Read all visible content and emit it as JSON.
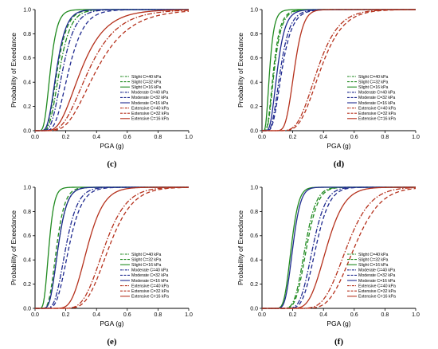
{
  "colors": {
    "Slight": "#1f8a1f",
    "Moderate": "#1f2a8f",
    "Extensive": "#b5311c"
  },
  "chart_data": [
    {
      "type": "line",
      "panel_label": "(c)",
      "xlabel": "PGA (g)",
      "ylabel": "Probability of Exeedance",
      "xlim": [
        0,
        1.0
      ],
      "ylim": [
        0,
        1.0
      ],
      "xticks": [
        "0.0",
        "0.2",
        "0.4",
        "0.6",
        "0.8",
        "1.0"
      ],
      "yticks": [
        "0.0",
        "0.2",
        "0.4",
        "0.6",
        "0.8",
        "1.0"
      ],
      "legend_position": "lower-right",
      "series": [
        {
          "name": "Slight C=40 kPa",
          "group": "Slight",
          "style": "dashdot",
          "median": 0.16,
          "beta": 0.35
        },
        {
          "name": "Slight C=32 kPa",
          "group": "Slight",
          "style": "dash",
          "median": 0.145,
          "beta": 0.35
        },
        {
          "name": "Slight C=16 kPa",
          "group": "Slight",
          "style": "solid",
          "median": 0.1,
          "beta": 0.35
        },
        {
          "name": "Moderate C=40 kPa",
          "group": "Moderate",
          "style": "dashdot",
          "median": 0.18,
          "beta": 0.35
        },
        {
          "name": "Moderate C=32 kPa",
          "group": "Moderate",
          "style": "dash",
          "median": 0.22,
          "beta": 0.35
        },
        {
          "name": "Moderate C=16 kPa",
          "group": "Moderate",
          "style": "solid",
          "median": 0.14,
          "beta": 0.35
        },
        {
          "name": "Extensive C=40 kPa",
          "group": "Extensive",
          "style": "dashdot",
          "median": 0.35,
          "beta": 0.42
        },
        {
          "name": "Extensive C=32 kPa",
          "group": "Extensive",
          "style": "dash",
          "median": 0.4,
          "beta": 0.42
        },
        {
          "name": "Extensive C=16 kPa",
          "group": "Extensive",
          "style": "solid",
          "median": 0.3,
          "beta": 0.42
        }
      ]
    },
    {
      "type": "line",
      "panel_label": "(d)",
      "xlabel": "PGA (g)",
      "ylabel": "Probability of Exeedance",
      "xlim": [
        0,
        1.0
      ],
      "ylim": [
        0,
        1.0
      ],
      "xticks": [
        "0.0",
        "0.2",
        "0.4",
        "0.6",
        "0.8",
        "1.0"
      ],
      "yticks": [
        "0.0",
        "0.2",
        "0.4",
        "0.6",
        "0.8",
        "1.0"
      ],
      "legend_position": "lower-right",
      "series": [
        {
          "name": "Slight C=40 kPa",
          "group": "Slight",
          "style": "dashdot",
          "median": 0.08,
          "beta": 0.45
        },
        {
          "name": "Slight C=32 kPa",
          "group": "Slight",
          "style": "dash",
          "median": 0.075,
          "beta": 0.45
        },
        {
          "name": "Slight C=16 kPa",
          "group": "Slight",
          "style": "solid",
          "median": 0.05,
          "beta": 0.45
        },
        {
          "name": "Moderate C=40 kPa",
          "group": "Moderate",
          "style": "dashdot",
          "median": 0.12,
          "beta": 0.4
        },
        {
          "name": "Moderate C=32 kPa",
          "group": "Moderate",
          "style": "dash",
          "median": 0.13,
          "beta": 0.4
        },
        {
          "name": "Moderate C=16 kPa",
          "group": "Moderate",
          "style": "solid",
          "median": 0.1,
          "beta": 0.4
        },
        {
          "name": "Extensive C=40 kPa",
          "group": "Extensive",
          "style": "dashdot",
          "median": 0.36,
          "beta": 0.3
        },
        {
          "name": "Extensive C=32 kPa",
          "group": "Extensive",
          "style": "dash",
          "median": 0.38,
          "beta": 0.3
        },
        {
          "name": "Extensive C=16 kPa",
          "group": "Extensive",
          "style": "solid",
          "median": 0.21,
          "beta": 0.22
        }
      ]
    },
    {
      "type": "line",
      "panel_label": "(e)",
      "xlabel": "PGA (g)",
      "ylabel": "Probability of Exeedance",
      "xlim": [
        0,
        1.0
      ],
      "ylim": [
        0,
        1.0
      ],
      "xticks": [
        "0.0",
        "0.2",
        "0.4",
        "0.6",
        "0.8",
        "1.0"
      ],
      "yticks": [
        "0.0",
        "0.2",
        "0.4",
        "0.6",
        "0.8",
        "1.0"
      ],
      "legend_position": "lower-right",
      "series": [
        {
          "name": "Slight C=40 kPa",
          "group": "Slight",
          "style": "dashdot",
          "median": 0.15,
          "beta": 0.3
        },
        {
          "name": "Slight C=32 kPa",
          "group": "Slight",
          "style": "dash",
          "median": 0.14,
          "beta": 0.3
        },
        {
          "name": "Slight C=16 kPa",
          "group": "Slight",
          "style": "solid",
          "median": 0.09,
          "beta": 0.3
        },
        {
          "name": "Moderate C=40 kPa",
          "group": "Moderate",
          "style": "dashdot",
          "median": 0.2,
          "beta": 0.3
        },
        {
          "name": "Moderate C=32 kPa",
          "group": "Moderate",
          "style": "dash",
          "median": 0.22,
          "beta": 0.3
        },
        {
          "name": "Moderate C=16 kPa",
          "group": "Moderate",
          "style": "solid",
          "median": 0.15,
          "beta": 0.3
        },
        {
          "name": "Extensive C=40 kPa",
          "group": "Extensive",
          "style": "dashdot",
          "median": 0.45,
          "beta": 0.25
        },
        {
          "name": "Extensive C=32 kPa",
          "group": "Extensive",
          "style": "dash",
          "median": 0.48,
          "beta": 0.25
        },
        {
          "name": "Extensive C=16 kPa",
          "group": "Extensive",
          "style": "solid",
          "median": 0.34,
          "beta": 0.25
        }
      ]
    },
    {
      "type": "line",
      "panel_label": "(f)",
      "xlabel": "PGA (g)",
      "ylabel": "Probability of Exeedance",
      "xlim": [
        0,
        1.0
      ],
      "ylim": [
        0,
        1.0
      ],
      "xticks": [
        "0.0",
        "0.2",
        "0.4",
        "0.6",
        "0.8",
        "1.0"
      ],
      "yticks": [
        "0.0",
        "0.2",
        "0.4",
        "0.6",
        "0.8",
        "1.0"
      ],
      "legend_position": "lower-right",
      "series": [
        {
          "name": "Slight C=40 kPa",
          "group": "Slight",
          "style": "dashdot",
          "median": 0.28,
          "beta": 0.2
        },
        {
          "name": "Slight C=32 kPa",
          "group": "Slight",
          "style": "dash",
          "median": 0.29,
          "beta": 0.2
        },
        {
          "name": "Slight C=16 kPa",
          "group": "Slight",
          "style": "solid",
          "median": 0.19,
          "beta": 0.2
        },
        {
          "name": "Moderate C=40 kPa",
          "group": "Moderate",
          "style": "dashdot",
          "median": 0.33,
          "beta": 0.2
        },
        {
          "name": "Moderate C=32 kPa",
          "group": "Moderate",
          "style": "dash",
          "median": 0.35,
          "beta": 0.2
        },
        {
          "name": "Moderate C=16 kPa",
          "group": "Moderate",
          "style": "solid",
          "median": 0.2,
          "beta": 0.2
        },
        {
          "name": "Extensive C=40 kPa",
          "group": "Extensive",
          "style": "dashdot",
          "median": 0.55,
          "beta": 0.22
        },
        {
          "name": "Extensive C=32 kPa",
          "group": "Extensive",
          "style": "dash",
          "median": 0.6,
          "beta": 0.22
        },
        {
          "name": "Extensive C=16 kPa",
          "group": "Extensive",
          "style": "solid",
          "median": 0.42,
          "beta": 0.22
        }
      ]
    }
  ]
}
